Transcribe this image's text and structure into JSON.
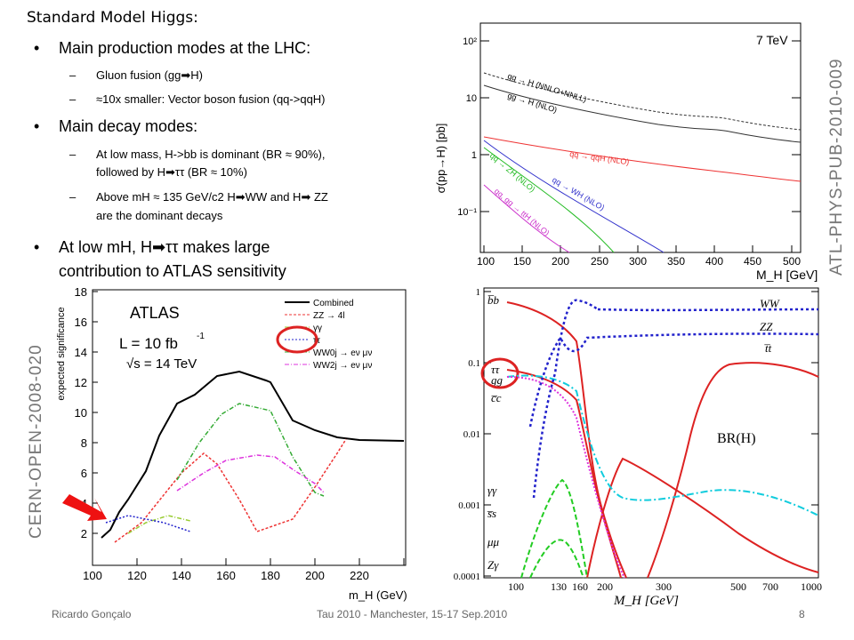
{
  "slide": {
    "title": "Standard Model Higgs:",
    "bullets": [
      {
        "text": "Main production modes at the LHC:"
      },
      {
        "text": "Main decay modes:"
      },
      {
        "line1": "At low mH, H➡ττ makes large",
        "line2": "contribution to ATLAS sensitivity"
      }
    ],
    "subs": [
      "Gluon fusion (gg➡H)",
      "≈10x smaller: Vector boson fusion (qq->qqH)",
      "At low mass, H->bb is dominant (BR ≈ 90%),",
      "followed by H➡ττ (BR ≈ 10%)",
      "Above mH ≈ 135 GeV/c2 H➡WW and H➡ ZZ",
      "are the dominant decays"
    ]
  },
  "side_labels": {
    "right": "ATL-PHYS-PUB-2010-009",
    "left": "CERN-OPEN-2008-020"
  },
  "footer": {
    "author": "Ricardo Gonçalo",
    "event": "Tau 2010 - Manchester, 15-17 Sep.2010",
    "page": "8"
  },
  "charts": {
    "xsec": {
      "energy": "7 TeV",
      "ylabel": "σ(pp→H) [pb]",
      "xlabel": "M_H [GeV]",
      "yticks": [
        "10²",
        "10",
        "1",
        "10⁻¹"
      ],
      "xticks": [
        "100",
        "150",
        "200",
        "250",
        "300",
        "350",
        "400",
        "450",
        "500"
      ],
      "labels": [
        "gg → H (NNLO+NNLL)",
        "gg → H (NLO)",
        "qq → qqH (NLO)",
        "qq → ZH (NLO)",
        "qq → WH (NLO)",
        "qq, gg → ttH (NLO)"
      ]
    },
    "significance": {
      "experiment": "ATLAS",
      "lumi": "L = 10 fb",
      "lumi_exp": "-1",
      "energy": "√s = 14 TeV",
      "ylabel": "expected significance",
      "xlabel": "m_H (GeV)",
      "yticks": [
        "2",
        "4",
        "6",
        "8",
        "10",
        "12",
        "14",
        "16",
        "18"
      ],
      "xticks": [
        "100",
        "120",
        "140",
        "160",
        "180",
        "200",
        "220"
      ],
      "legend": [
        "Combined",
        "ZZ → 4l",
        "γγ",
        "ττ",
        "WW0j → eν μν",
        "WW2j → eν μν"
      ]
    },
    "br": {
      "yticks": [
        "1",
        "0.1",
        "0.01",
        "0.001",
        "0.0001"
      ],
      "xticks": [
        "100",
        "130",
        "160",
        "200",
        "300",
        "500",
        "700",
        "1000"
      ],
      "xlabel": "M_H [GeV]",
      "title": "BR(H)",
      "channels": [
        "b̅b",
        "ττ",
        "gg",
        "c̅c",
        "γγ",
        "s̅s",
        "μμ",
        "Zγ",
        "WW",
        "ZZ",
        "t̅t"
      ]
    }
  }
}
